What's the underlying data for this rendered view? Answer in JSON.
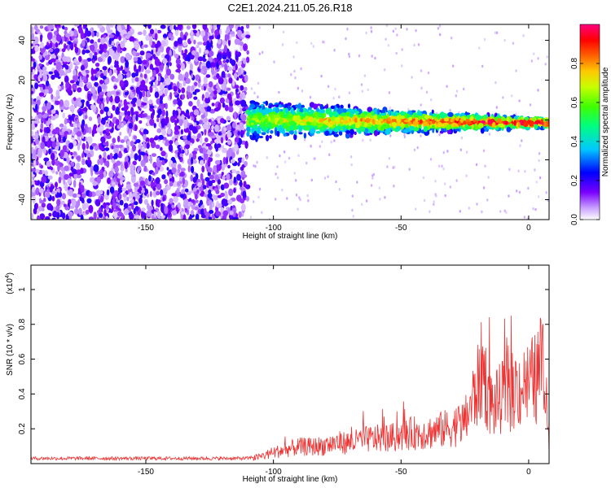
{
  "title": "C2E1.2024.211.05.26.R18",
  "chart_data": [
    {
      "type": "heatmap",
      "xlabel": "Height of straight line (km)",
      "ylabel": "Frequency (Hz)",
      "xlim": [
        -195,
        8
      ],
      "ylim": [
        -50,
        48
      ],
      "xticks": [
        -150,
        -100,
        -50,
        0
      ],
      "yticks": [
        -40,
        -20,
        0,
        20,
        40
      ],
      "colorbar": {
        "label": "Normalized spectral amplitude",
        "range": [
          0,
          1
        ],
        "ticks": [
          "0.0",
          "0.2",
          "0.4",
          "0.6",
          "0.8"
        ],
        "colormap": [
          "#ffffff",
          "#c8a0ff",
          "#7a00ff",
          "#0000ff",
          "#00c8ff",
          "#00ff80",
          "#40ff00",
          "#c8ff00",
          "#ffc800",
          "#ff6000",
          "#ff0000",
          "#ff0080"
        ]
      },
      "regions": [
        {
          "x": [
            -195,
            -110
          ],
          "description_value": "broadband noise",
          "level": 0.2
        },
        {
          "x": [
            -110,
            8
          ],
          "band_center_hz": 0,
          "band_halfwidth_hz": 8,
          "level_range": [
            0.3,
            1.0
          ]
        }
      ]
    },
    {
      "type": "line",
      "xlabel": "Height of straight line (km)",
      "ylabel": "SNR (10 * v/v)",
      "y_multiplier": "(x10",
      "y_multiplier_exp": "4",
      "y_multiplier_close": ")",
      "xlim": [
        -195,
        8
      ],
      "ylim": [
        0,
        1.14
      ],
      "xticks": [
        -150,
        -100,
        -50,
        0
      ],
      "yticks": [
        "0.2",
        "0.4",
        "0.6",
        "0.8",
        "1"
      ],
      "ytick_values": [
        0.2,
        0.4,
        0.6,
        0.8,
        1.0
      ],
      "color": "#ee3333",
      "series": [
        {
          "x": [
            -195,
            -180,
            -160,
            -140,
            -120,
            -110,
            -105,
            -100,
            -95,
            -90,
            -85,
            -80,
            -75,
            -70,
            -65,
            -60,
            -55,
            -50,
            -45,
            -40,
            -35,
            -30,
            -25,
            -22,
            -20,
            -18,
            -16,
            -14,
            -12,
            -10,
            -8,
            -6,
            -4,
            -2,
            0,
            2,
            4,
            6,
            7,
            8
          ],
          "y": [
            0.03,
            0.03,
            0.03,
            0.03,
            0.03,
            0.03,
            0.05,
            0.08,
            0.1,
            0.12,
            0.12,
            0.13,
            0.15,
            0.15,
            0.17,
            0.18,
            0.18,
            0.2,
            0.22,
            0.22,
            0.24,
            0.26,
            0.3,
            0.45,
            0.55,
            0.7,
            0.5,
            0.4,
            0.45,
            0.48,
            0.5,
            0.52,
            0.55,
            0.55,
            0.57,
            0.6,
            0.62,
            0.68,
            0.4,
            0.15
          ]
        }
      ]
    }
  ]
}
